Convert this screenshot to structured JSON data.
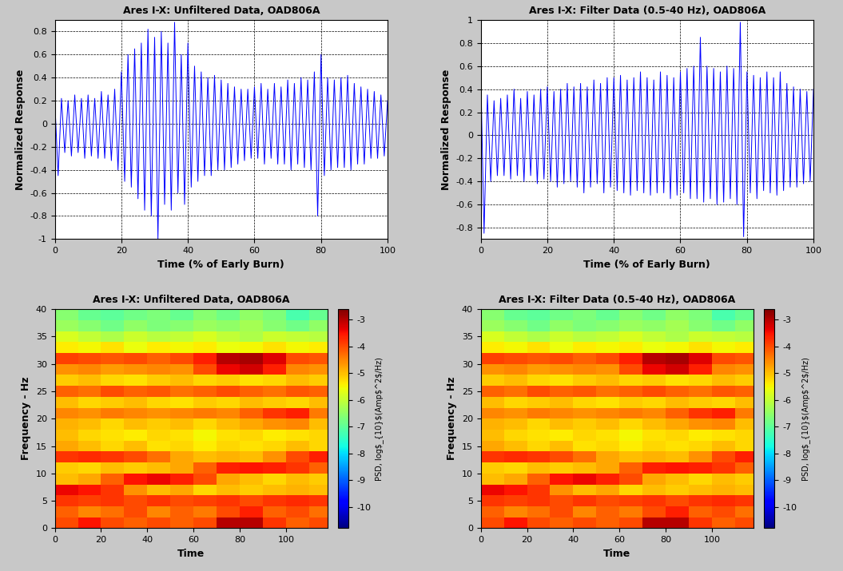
{
  "chart_data": [
    {
      "type": "line",
      "title": "Ares I-X: Unfiltered Data, OAD806A",
      "x_label": "Time (% of Early Burn)",
      "y_label": "Normalized Response",
      "color": "#0000ff",
      "grid": true,
      "xlim": [
        0,
        100
      ],
      "ylim": [
        -1,
        0.9
      ],
      "xticks": [
        0,
        20,
        40,
        60,
        80,
        100
      ],
      "yticks": [
        -1,
        -0.8,
        -0.6,
        -0.4,
        -0.2,
        0,
        0.2,
        0.4,
        0.6,
        0.8
      ],
      "x": [
        0,
        1,
        2,
        3,
        4,
        5,
        6,
        7,
        8,
        9,
        10,
        11,
        12,
        13,
        14,
        15,
        16,
        17,
        18,
        19,
        20,
        21,
        22,
        23,
        24,
        25,
        26,
        27,
        28,
        29,
        30,
        31,
        32,
        33,
        34,
        35,
        36,
        37,
        38,
        39,
        40,
        41,
        42,
        43,
        44,
        45,
        46,
        47,
        48,
        49,
        50,
        51,
        52,
        53,
        54,
        55,
        56,
        57,
        58,
        59,
        60,
        61,
        62,
        63,
        64,
        65,
        66,
        67,
        68,
        69,
        70,
        71,
        72,
        73,
        74,
        75,
        76,
        77,
        78,
        79,
        80,
        81,
        82,
        83,
        84,
        85,
        86,
        87,
        88,
        89,
        90,
        91,
        92,
        93,
        94,
        95,
        96,
        97,
        98,
        99,
        100
      ],
      "values": [
        0.2,
        -0.45,
        0.22,
        -0.25,
        0.2,
        -0.28,
        0.25,
        -0.25,
        0.22,
        -0.3,
        0.25,
        -0.28,
        0.22,
        -0.3,
        0.28,
        -0.3,
        0.25,
        -0.32,
        0.3,
        -0.4,
        0.45,
        -0.5,
        0.6,
        -0.55,
        0.65,
        -0.65,
        0.7,
        -0.75,
        0.82,
        -0.8,
        0.75,
        -1.0,
        0.8,
        -0.7,
        0.7,
        -0.75,
        0.88,
        -0.6,
        0.6,
        -0.7,
        0.7,
        -0.55,
        0.5,
        -0.5,
        0.45,
        -0.45,
        0.4,
        -0.45,
        0.42,
        -0.4,
        0.38,
        -0.4,
        0.35,
        -0.38,
        0.32,
        -0.35,
        0.3,
        -0.32,
        0.3,
        -0.3,
        0.32,
        -0.3,
        0.35,
        -0.35,
        0.3,
        -0.3,
        0.35,
        -0.35,
        0.32,
        -0.35,
        0.38,
        -0.4,
        0.35,
        -0.35,
        0.4,
        -0.38,
        0.38,
        -0.4,
        0.45,
        -0.8,
        0.6,
        -0.45,
        0.4,
        -0.4,
        0.38,
        -0.38,
        0.4,
        -0.38,
        0.42,
        -0.4,
        0.35,
        -0.35,
        0.32,
        -0.35,
        0.3,
        -0.3,
        0.28,
        -0.3,
        0.25,
        -0.28,
        0.2
      ]
    },
    {
      "type": "line",
      "title": "Ares I-X: Filter Data (0.5-40 Hz), OAD806A",
      "x_label": "Time (% of Early Burn)",
      "y_label": "Normalized Response",
      "color": "#0000ff",
      "grid": true,
      "xlim": [
        0,
        100
      ],
      "ylim": [
        -0.9,
        1
      ],
      "xticks": [
        0,
        20,
        40,
        60,
        80,
        100
      ],
      "yticks": [
        -0.8,
        -0.6,
        -0.4,
        -0.2,
        0,
        0.2,
        0.4,
        0.6,
        0.8,
        1
      ],
      "x": [
        0,
        1,
        2,
        3,
        4,
        5,
        6,
        7,
        8,
        9,
        10,
        11,
        12,
        13,
        14,
        15,
        16,
        17,
        18,
        19,
        20,
        21,
        22,
        23,
        24,
        25,
        26,
        27,
        28,
        29,
        30,
        31,
        32,
        33,
        34,
        35,
        36,
        37,
        38,
        39,
        40,
        41,
        42,
        43,
        44,
        45,
        46,
        47,
        48,
        49,
        50,
        51,
        52,
        53,
        54,
        55,
        56,
        57,
        58,
        59,
        60,
        61,
        62,
        63,
        64,
        65,
        66,
        67,
        68,
        69,
        70,
        71,
        72,
        73,
        74,
        75,
        76,
        77,
        78,
        79,
        80,
        81,
        82,
        83,
        84,
        85,
        86,
        87,
        88,
        89,
        90,
        91,
        92,
        93,
        94,
        95,
        96,
        97,
        98,
        99,
        100
      ],
      "values": [
        0.55,
        -0.85,
        0.35,
        -0.4,
        0.3,
        -0.35,
        0.32,
        -0.35,
        0.35,
        -0.38,
        0.4,
        -0.35,
        0.32,
        -0.4,
        0.38,
        -0.35,
        0.35,
        -0.42,
        0.4,
        -0.38,
        0.42,
        -0.4,
        0.38,
        -0.45,
        0.4,
        -0.42,
        0.45,
        -0.4,
        0.42,
        -0.45,
        0.45,
        -0.5,
        0.42,
        -0.45,
        0.48,
        -0.42,
        0.45,
        -0.5,
        0.5,
        -0.45,
        0.5,
        -0.48,
        0.52,
        -0.5,
        0.48,
        -0.52,
        0.5,
        -0.48,
        0.55,
        -0.5,
        0.5,
        -0.52,
        0.48,
        -0.5,
        0.55,
        -0.5,
        0.52,
        -0.55,
        0.5,
        -0.52,
        0.55,
        -0.5,
        0.58,
        -0.55,
        0.6,
        -0.55,
        0.85,
        -0.58,
        0.6,
        -0.55,
        0.58,
        -0.6,
        0.55,
        -0.58,
        0.6,
        -0.55,
        0.58,
        -0.6,
        0.98,
        -0.88,
        0.55,
        -0.5,
        0.52,
        -0.55,
        0.5,
        -0.48,
        0.55,
        -0.5,
        0.5,
        -0.52,
        0.55,
        -0.48,
        0.45,
        -0.45,
        0.42,
        -0.45,
        0.4,
        -0.42,
        0.38,
        -0.4,
        0.4
      ]
    },
    {
      "type": "heatmap",
      "title": "Ares I-X: Unfiltered Data, OAD806A",
      "x_label": "Time",
      "y_label": "Frequency - Hz",
      "grid": false,
      "xlim": [
        0,
        118
      ],
      "ylim": [
        0,
        40
      ],
      "xticks": [
        0,
        20,
        40,
        60,
        80,
        100
      ],
      "yticks": [
        0,
        5,
        10,
        15,
        20,
        25,
        30,
        35,
        40
      ],
      "x_edges": [
        0,
        10,
        20,
        30,
        40,
        50,
        60,
        70,
        80,
        90,
        100,
        110,
        118
      ],
      "y_edges": [
        0,
        2,
        4,
        6,
        8,
        10,
        12,
        14,
        16,
        18,
        20,
        22,
        24,
        26,
        28,
        30,
        32,
        34,
        36,
        38,
        40
      ],
      "colorbar_label": "PSD, log$_{10}$(Amp$^2$/Hz)",
      "colorbar_range": [
        -10.8,
        -2.6
      ],
      "colorbar_ticks": [
        -10,
        -9,
        -8,
        -7,
        -6,
        -5,
        -4,
        -3
      ],
      "cells": [
        [
          -4.0,
          -3.5,
          -4.0,
          -4.2,
          -4.0,
          -4.2,
          -4.0,
          -3.0,
          -3.0,
          -3.8,
          -4.2,
          -4.0
        ],
        [
          -4.2,
          -4.5,
          -4.3,
          -4.0,
          -4.5,
          -4.2,
          -4.4,
          -4.0,
          -3.6,
          -4.2,
          -4.0,
          -4.3
        ],
        [
          -3.8,
          -3.9,
          -3.8,
          -4.0,
          -3.8,
          -4.0,
          -3.9,
          -3.8,
          -4.0,
          -3.8,
          -3.7,
          -3.8
        ],
        [
          -3.4,
          -3.5,
          -3.8,
          -4.6,
          -5.0,
          -4.8,
          -5.2,
          -5.0,
          -5.1,
          -5.0,
          -4.9,
          -5.0
        ],
        [
          -5.0,
          -4.8,
          -4.2,
          -3.5,
          -3.4,
          -3.6,
          -4.0,
          -4.8,
          -5.0,
          -5.2,
          -5.0,
          -5.1
        ],
        [
          -5.1,
          -5.2,
          -5.0,
          -5.1,
          -5.0,
          -4.8,
          -4.2,
          -3.6,
          -3.5,
          -3.6,
          -3.8,
          -4.2
        ],
        [
          -3.8,
          -3.7,
          -3.8,
          -4.0,
          -4.3,
          -4.8,
          -5.0,
          -4.9,
          -5.0,
          -4.6,
          -4.0,
          -3.6
        ],
        [
          -4.8,
          -5.0,
          -5.2,
          -5.0,
          -5.3,
          -5.2,
          -5.4,
          -5.2,
          -5.3,
          -5.2,
          -5.0,
          -5.2
        ],
        [
          -5.0,
          -5.2,
          -5.3,
          -5.4,
          -5.2,
          -5.3,
          -5.5,
          -5.3,
          -5.2,
          -5.4,
          -5.3,
          -5.2
        ],
        [
          -4.9,
          -5.0,
          -5.2,
          -5.0,
          -5.1,
          -5.0,
          -5.2,
          -5.0,
          -4.8,
          -4.6,
          -4.5,
          -5.0
        ],
        [
          -4.5,
          -4.6,
          -4.4,
          -4.5,
          -4.6,
          -4.5,
          -4.4,
          -4.5,
          -4.2,
          -3.8,
          -3.6,
          -4.4
        ],
        [
          -5.0,
          -5.2,
          -5.1,
          -5.0,
          -5.2,
          -5.3,
          -5.1,
          -5.2,
          -5.0,
          -5.1,
          -5.2,
          -5.0
        ],
        [
          -4.2,
          -4.3,
          -4.0,
          -4.2,
          -4.1,
          -4.3,
          -4.2,
          -4.0,
          -4.2,
          -4.3,
          -4.1,
          -4.2
        ],
        [
          -5.1,
          -5.0,
          -5.2,
          -5.3,
          -5.1,
          -5.0,
          -5.2,
          -5.1,
          -5.3,
          -5.2,
          -5.0,
          -5.1
        ],
        [
          -4.6,
          -4.5,
          -4.7,
          -4.6,
          -4.5,
          -4.6,
          -4.0,
          -3.4,
          -3.2,
          -3.6,
          -4.5,
          -4.6
        ],
        [
          -3.9,
          -4.0,
          -4.1,
          -4.0,
          -4.2,
          -4.0,
          -3.6,
          -3.0,
          -2.9,
          -3.3,
          -4.0,
          -4.1
        ],
        [
          -5.4,
          -5.5,
          -5.3,
          -5.6,
          -5.4,
          -5.5,
          -5.4,
          -5.6,
          -5.5,
          -5.3,
          -5.5,
          -5.4
        ],
        [
          -5.8,
          -6.0,
          -6.2,
          -5.9,
          -6.1,
          -6.0,
          -5.8,
          -6.0,
          -6.2,
          -5.9,
          -6.0,
          -6.1
        ],
        [
          -6.4,
          -6.6,
          -6.8,
          -6.5,
          -6.7,
          -6.6,
          -6.4,
          -6.5,
          -6.3,
          -6.6,
          -6.8,
          -6.5
        ],
        [
          -6.6,
          -6.9,
          -7.0,
          -6.8,
          -6.7,
          -6.9,
          -6.6,
          -6.8,
          -6.5,
          -6.7,
          -7.2,
          -6.9
        ]
      ]
    },
    {
      "type": "heatmap",
      "title": "Ares I-X: Filter Data (0.5-40 Hz), OAD806A",
      "x_label": "Time",
      "y_label": "Frequency - Hz",
      "grid": false,
      "xlim": [
        0,
        118
      ],
      "ylim": [
        0,
        40
      ],
      "xticks": [
        0,
        20,
        40,
        60,
        80,
        100
      ],
      "yticks": [
        0,
        5,
        10,
        15,
        20,
        25,
        30,
        35,
        40
      ],
      "x_edges": [
        0,
        10,
        20,
        30,
        40,
        50,
        60,
        70,
        80,
        90,
        100,
        110,
        118
      ],
      "y_edges": [
        0,
        2,
        4,
        6,
        8,
        10,
        12,
        14,
        16,
        18,
        20,
        22,
        24,
        26,
        28,
        30,
        32,
        34,
        36,
        38,
        40
      ],
      "colorbar_label": "PSD, log$_{10}$(Amp$^2$/Hz)",
      "colorbar_range": [
        -10.8,
        -2.6
      ],
      "colorbar_ticks": [
        -10,
        -9,
        -8,
        -7,
        -6,
        -5,
        -4,
        -3
      ],
      "cells": [
        [
          -4.0,
          -3.5,
          -4.0,
          -4.2,
          -4.0,
          -4.2,
          -4.0,
          -3.0,
          -3.0,
          -3.8,
          -4.2,
          -4.0
        ],
        [
          -4.2,
          -4.5,
          -4.3,
          -4.0,
          -4.5,
          -4.2,
          -4.4,
          -4.0,
          -3.6,
          -4.2,
          -4.0,
          -4.3
        ],
        [
          -3.8,
          -3.9,
          -3.8,
          -4.0,
          -3.8,
          -4.0,
          -3.9,
          -3.8,
          -4.0,
          -3.8,
          -3.7,
          -3.8
        ],
        [
          -3.4,
          -3.5,
          -3.8,
          -4.6,
          -5.0,
          -4.8,
          -5.2,
          -5.0,
          -5.1,
          -5.0,
          -4.9,
          -5.0
        ],
        [
          -5.0,
          -4.8,
          -4.2,
          -3.5,
          -3.4,
          -3.6,
          -4.0,
          -4.8,
          -5.0,
          -5.2,
          -5.0,
          -5.1
        ],
        [
          -5.1,
          -5.2,
          -5.0,
          -5.1,
          -5.0,
          -4.8,
          -4.2,
          -3.6,
          -3.5,
          -3.6,
          -3.8,
          -4.2
        ],
        [
          -3.8,
          -3.7,
          -3.8,
          -4.0,
          -4.3,
          -4.8,
          -5.0,
          -4.9,
          -5.0,
          -4.6,
          -4.0,
          -3.6
        ],
        [
          -4.8,
          -5.0,
          -5.2,
          -5.0,
          -5.3,
          -5.2,
          -5.4,
          -5.2,
          -5.3,
          -5.2,
          -5.0,
          -5.2
        ],
        [
          -5.0,
          -5.2,
          -5.3,
          -5.4,
          -5.2,
          -5.3,
          -5.5,
          -5.3,
          -5.2,
          -5.4,
          -5.3,
          -5.2
        ],
        [
          -4.9,
          -5.0,
          -5.2,
          -5.0,
          -5.1,
          -5.0,
          -5.2,
          -5.0,
          -4.8,
          -4.6,
          -4.5,
          -5.0
        ],
        [
          -4.5,
          -4.6,
          -4.4,
          -4.5,
          -4.6,
          -4.5,
          -4.4,
          -4.5,
          -4.2,
          -3.8,
          -3.6,
          -4.4
        ],
        [
          -5.0,
          -5.2,
          -5.1,
          -5.0,
          -5.2,
          -5.3,
          -5.1,
          -5.2,
          -5.0,
          -5.1,
          -5.2,
          -5.0
        ],
        [
          -4.2,
          -4.3,
          -4.0,
          -4.2,
          -4.1,
          -4.3,
          -4.2,
          -4.0,
          -4.2,
          -4.3,
          -4.1,
          -4.2
        ],
        [
          -5.1,
          -5.0,
          -5.2,
          -5.3,
          -5.1,
          -5.0,
          -5.2,
          -5.1,
          -5.3,
          -5.2,
          -5.0,
          -5.1
        ],
        [
          -4.6,
          -4.5,
          -4.7,
          -4.6,
          -4.5,
          -4.6,
          -4.0,
          -3.4,
          -3.2,
          -3.6,
          -4.5,
          -4.6
        ],
        [
          -3.9,
          -4.0,
          -4.1,
          -4.0,
          -4.2,
          -4.0,
          -3.6,
          -3.0,
          -2.9,
          -3.3,
          -4.0,
          -4.1
        ],
        [
          -5.4,
          -5.5,
          -5.3,
          -5.6,
          -5.4,
          -5.5,
          -5.4,
          -5.6,
          -5.5,
          -5.3,
          -5.5,
          -5.4
        ],
        [
          -5.8,
          -6.0,
          -6.2,
          -5.9,
          -6.1,
          -6.0,
          -5.8,
          -6.0,
          -6.2,
          -5.9,
          -6.0,
          -6.1
        ],
        [
          -6.4,
          -6.6,
          -6.8,
          -6.5,
          -6.7,
          -6.6,
          -6.4,
          -6.5,
          -6.3,
          -6.6,
          -6.8,
          -6.5
        ],
        [
          -6.6,
          -6.9,
          -7.0,
          -6.8,
          -6.7,
          -6.9,
          -6.6,
          -6.8,
          -6.5,
          -6.7,
          -7.2,
          -6.9
        ]
      ]
    }
  ]
}
